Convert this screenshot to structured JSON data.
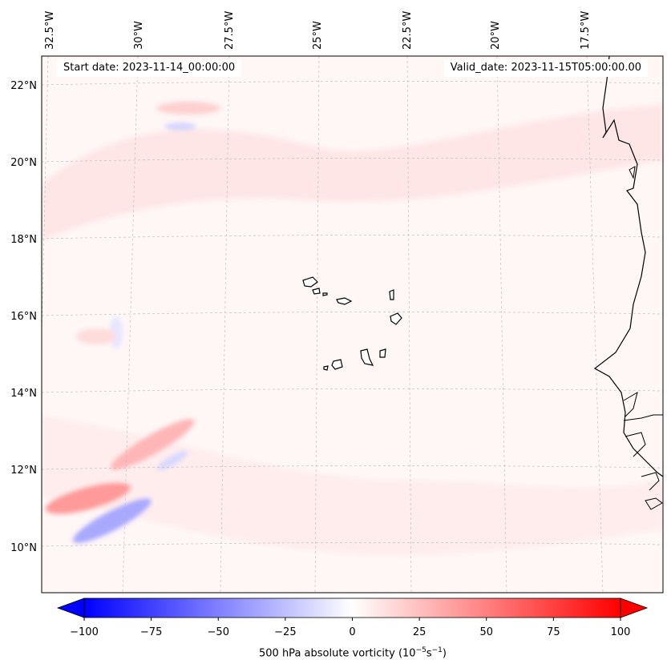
{
  "map": {
    "start_date": "Start date: 2023-11-14_00:00:00",
    "valid_date": "Valid_date: 2023-11-15T05:00:00.00",
    "longitude_labels": [
      "32.5°W",
      "30°W",
      "27.5°W",
      "25°W",
      "22.5°W",
      "20°W",
      "17.5°W"
    ],
    "latitude_labels": [
      "22°N",
      "20°N",
      "18°N",
      "16°N",
      "14°N",
      "12°N",
      "10°N"
    ],
    "region": "Cabo Verde and West African coast",
    "field": "500 hPa absolute vorticity"
  },
  "colorbar": {
    "min": -100,
    "max": 100,
    "tick_labels": [
      "−100",
      "−75",
      "−50",
      "−25",
      "0",
      "25",
      "50",
      "75",
      "100"
    ],
    "label_prefix": "500 hPa absolute vorticity (10",
    "label_exp1": "−5",
    "label_mid": "s",
    "label_exp2": "−1",
    "label_suffix": ")",
    "negative_color": "#0000ff",
    "neutral_color": "#ffffff",
    "positive_color": "#ff0000",
    "colormap": "bwr",
    "extend": "both"
  }
}
